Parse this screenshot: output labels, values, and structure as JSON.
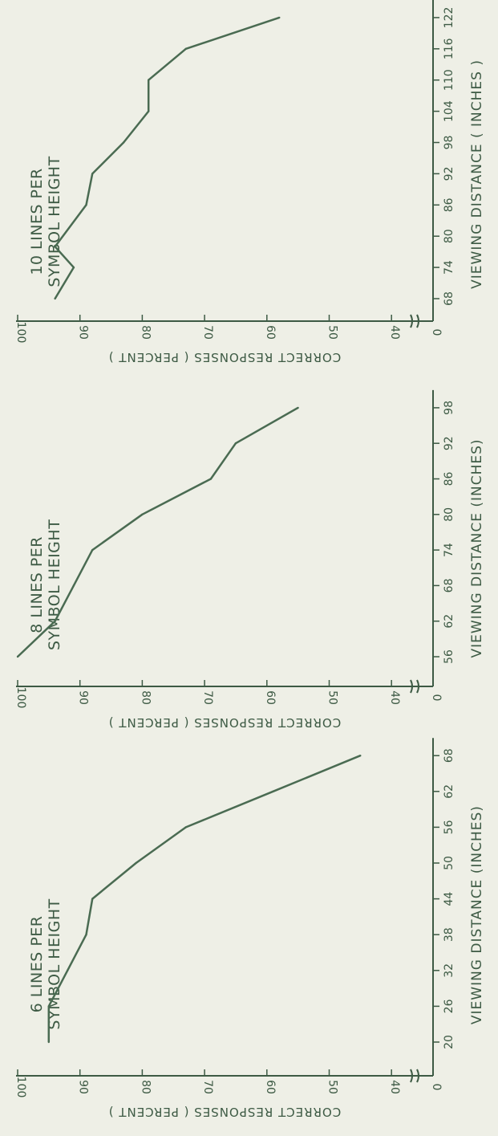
{
  "chart_data": [
    {
      "type": "line",
      "title": [
        "6 LINES PER",
        "SYMBOL HEIGHT"
      ],
      "xlabel": "VIEWING DISTANCE (INCHES)",
      "ylabel": "CORRECT RESPONSES ( PERCENT )",
      "x_ticks": [
        "20",
        "26",
        "32",
        "38",
        "44",
        "50",
        "56",
        "62",
        "68"
      ],
      "y_ticks": [
        "100",
        "90",
        "80",
        "70",
        "60",
        "50",
        "40",
        "0"
      ],
      "xlim": [
        20,
        68
      ],
      "ylim": [
        40,
        100
      ],
      "y_axis_break": true,
      "x": [
        20,
        26,
        32,
        38,
        44,
        50,
        56,
        62,
        68
      ],
      "y": [
        95,
        95,
        92,
        89,
        88,
        81,
        73,
        59,
        45
      ]
    },
    {
      "type": "line",
      "title": [
        "8 LINES PER",
        "SYMBOL HEIGHT"
      ],
      "xlabel": "VIEWING DISTANCE (INCHES)",
      "ylabel": "CORRECT RESPONSES ( PERCENT )",
      "x_ticks": [
        "56",
        "62",
        "68",
        "74",
        "80",
        "86",
        "92",
        "98"
      ],
      "y_ticks": [
        "100",
        "90",
        "80",
        "70",
        "60",
        "50",
        "40",
        "0"
      ],
      "xlim": [
        56,
        98
      ],
      "ylim": [
        40,
        100
      ],
      "y_axis_break": true,
      "x": [
        56,
        62,
        68,
        74,
        80,
        86,
        92,
        98
      ],
      "y": [
        100,
        94,
        91,
        88,
        80,
        69,
        65,
        55
      ]
    },
    {
      "type": "line",
      "title": [
        "10 LINES PER",
        "SYMBOL HEIGHT"
      ],
      "xlabel": "VIEWING DISTANCE ( INCHES )",
      "ylabel": "CORRECT RESPONSES ( PERCENT )",
      "x_ticks": [
        "68",
        "74",
        "80",
        "86",
        "92",
        "98",
        "104",
        "110",
        "116",
        "122"
      ],
      "y_ticks": [
        "100",
        "90",
        "80",
        "70",
        "60",
        "50",
        "40",
        "0"
      ],
      "xlim": [
        68,
        122
      ],
      "ylim": [
        40,
        100
      ],
      "y_axis_break": true,
      "x": [
        68,
        74,
        78,
        86,
        92,
        98,
        104,
        110,
        116,
        122
      ],
      "y": [
        94,
        91,
        94,
        89,
        88,
        83,
        79,
        79,
        73,
        58
      ]
    }
  ]
}
